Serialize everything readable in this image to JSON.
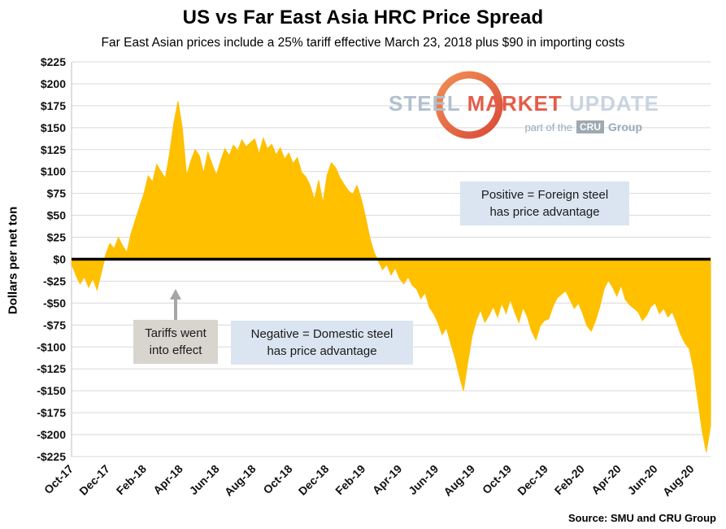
{
  "chart_data": {
    "type": "area",
    "title": "US vs Far East Asia HRC Price Spread",
    "subtitle": "Far East Asian prices include a 25% tariff effective March 23, 2018 plus $90 in importing costs",
    "ylabel": "Dollars per net ton",
    "ylim": [
      -225,
      225
    ],
    "ytick_step": 25,
    "series_color": "#FFC000",
    "zero_line_color": "#000000",
    "grid_color": "#d9d9d9",
    "x_range_months": 35,
    "x_tick_labels": [
      "Oct-17",
      "Dec-17",
      "Feb-18",
      "Apr-18",
      "Jun-18",
      "Aug-18",
      "Oct-18",
      "Dec-18",
      "Feb-19",
      "Apr-19",
      "Jun-19",
      "Aug-19",
      "Oct-19",
      "Dec-19",
      "Feb-20",
      "Apr-20",
      "Jun-20",
      "Aug-20"
    ],
    "values": [
      -5,
      -18,
      -28,
      -20,
      -32,
      -22,
      -35,
      -15,
      5,
      18,
      12,
      25,
      15,
      8,
      30,
      45,
      60,
      75,
      95,
      88,
      108,
      100,
      92,
      120,
      155,
      180,
      150,
      95,
      112,
      125,
      118,
      98,
      122,
      108,
      96,
      112,
      126,
      118,
      130,
      124,
      136,
      128,
      133,
      137,
      120,
      138,
      126,
      131,
      119,
      127,
      114,
      121,
      109,
      116,
      99,
      94,
      84,
      68,
      90,
      64,
      96,
      110,
      104,
      93,
      85,
      78,
      74,
      84,
      69,
      48,
      25,
      8,
      -2,
      -12,
      -6,
      -18,
      -10,
      -22,
      -28,
      -20,
      -30,
      -34,
      -45,
      -38,
      -55,
      -62,
      -72,
      -86,
      -78,
      -96,
      -112,
      -132,
      -150,
      -118,
      -88,
      -70,
      -58,
      -72,
      -64,
      -54,
      -66,
      -50,
      -62,
      -46,
      -60,
      -72,
      -55,
      -66,
      -82,
      -92,
      -76,
      -70,
      -68,
      -54,
      -44,
      -40,
      -36,
      -46,
      -56,
      -50,
      -62,
      -76,
      -82,
      -70,
      -54,
      -34,
      -24,
      -32,
      -42,
      -30,
      -46,
      -52,
      -56,
      -60,
      -70,
      -64,
      -54,
      -50,
      -62,
      -56,
      -66,
      -60,
      -72,
      -86,
      -96,
      -102,
      -125,
      -160,
      -195,
      -220,
      -190
    ]
  },
  "annotations": {
    "positive": {
      "line1": "Positive = Foreign steel",
      "line2": "has price advantage"
    },
    "negative": {
      "line1": "Negative = Domestic steel",
      "line2": "has price advantage"
    },
    "tariffs": {
      "line1": "Tariffs went",
      "line2": "into effect"
    }
  },
  "watermark": {
    "word1": "STEEL",
    "word2": "MARKET",
    "word3": "UPDATE",
    "tagline_prefix": "part of the",
    "badge": "CRU",
    "tagline_suffix": "Group"
  },
  "source": "Source: SMU and CRU Group"
}
